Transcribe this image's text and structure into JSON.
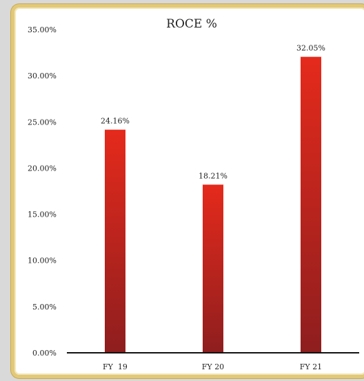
{
  "chart_data": {
    "type": "bar",
    "title": "ROCE %",
    "categories": [
      "FY  19",
      "FY 20",
      "FY 21"
    ],
    "values": [
      24.16,
      18.21,
      32.05
    ],
    "data_labels": [
      "24.16%",
      "18.21%",
      "32.05%"
    ],
    "y_ticks": [
      "0.00%",
      "5.00%",
      "10.00%",
      "15.00%",
      "20.00%",
      "25.00%",
      "30.00%",
      "35.00%"
    ],
    "ylim": [
      0,
      35
    ],
    "xlabel": "",
    "ylabel": "",
    "grid": false,
    "legend": "none",
    "colors": {
      "bar_top": "#e52a1c",
      "bar_bottom": "#8e1e1e",
      "frame": "#e2c97a",
      "axis": "#111111"
    }
  }
}
